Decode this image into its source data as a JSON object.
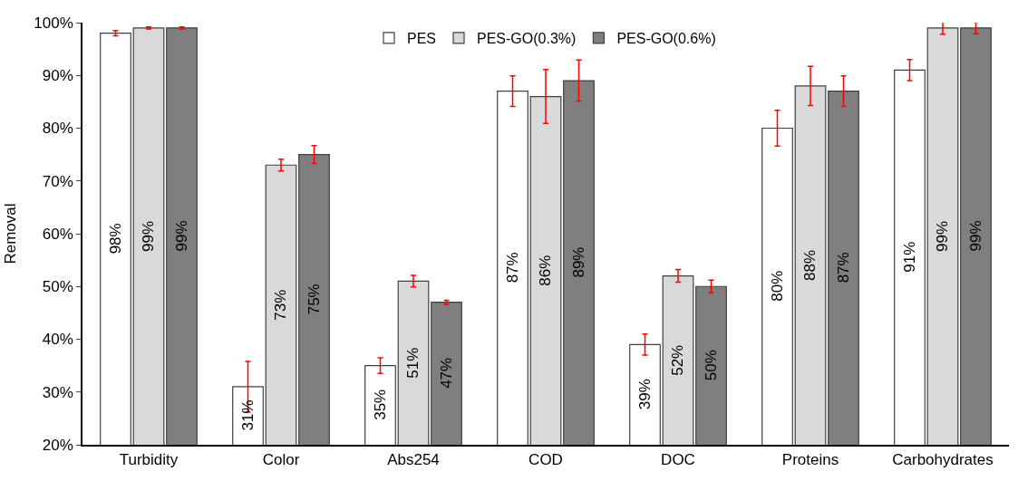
{
  "chart_data": {
    "type": "bar",
    "ylabel": "Removal",
    "categories": [
      "Turbidity",
      "Color",
      "Abs254",
      "COD",
      "DOC",
      "Proteins",
      "Carbohydrates"
    ],
    "series": [
      {
        "name": "PES",
        "color": "#ffffff",
        "values": [
          98,
          31,
          35,
          87,
          39,
          80,
          91
        ],
        "value_labels": [
          "98%",
          "31%",
          "35%",
          "87%",
          "39%",
          "80%",
          "91%"
        ],
        "errors": [
          0.5,
          4.8,
          1.5,
          2.9,
          2.0,
          3.4,
          2.0
        ]
      },
      {
        "name": "PES-GO(0.3%)",
        "color": "#d9d9d9",
        "values": [
          99,
          73,
          51,
          86,
          52,
          88,
          99
        ],
        "value_labels": [
          "99%",
          "73%",
          "51%",
          "86%",
          "52%",
          "88%",
          "99%"
        ],
        "errors": [
          0.2,
          1.1,
          1.1,
          5.1,
          1.2,
          3.7,
          1.2
        ]
      },
      {
        "name": "PES-GO(0.6%)",
        "color": "#7f7f7f",
        "values": [
          99,
          75,
          47,
          89,
          50,
          87,
          99
        ],
        "value_labels": [
          "99%",
          "75%",
          "47%",
          "89%",
          "50%",
          "87%",
          "99%"
        ],
        "errors": [
          0.2,
          1.7,
          0.4,
          3.9,
          1.2,
          2.9,
          1.1
        ]
      }
    ],
    "ylim": [
      20,
      100
    ],
    "yticks": [
      {
        "value": 20,
        "label": "20%"
      },
      {
        "value": 30,
        "label": "30%"
      },
      {
        "value": 40,
        "label": "40%"
      },
      {
        "value": 50,
        "label": "50%"
      },
      {
        "value": 60,
        "label": "60%"
      },
      {
        "value": 70,
        "label": "70%"
      },
      {
        "value": 80,
        "label": "80%"
      },
      {
        "value": 90,
        "label": "90%"
      },
      {
        "value": 100,
        "label": "100%"
      }
    ],
    "grid": false,
    "legend": "top"
  }
}
